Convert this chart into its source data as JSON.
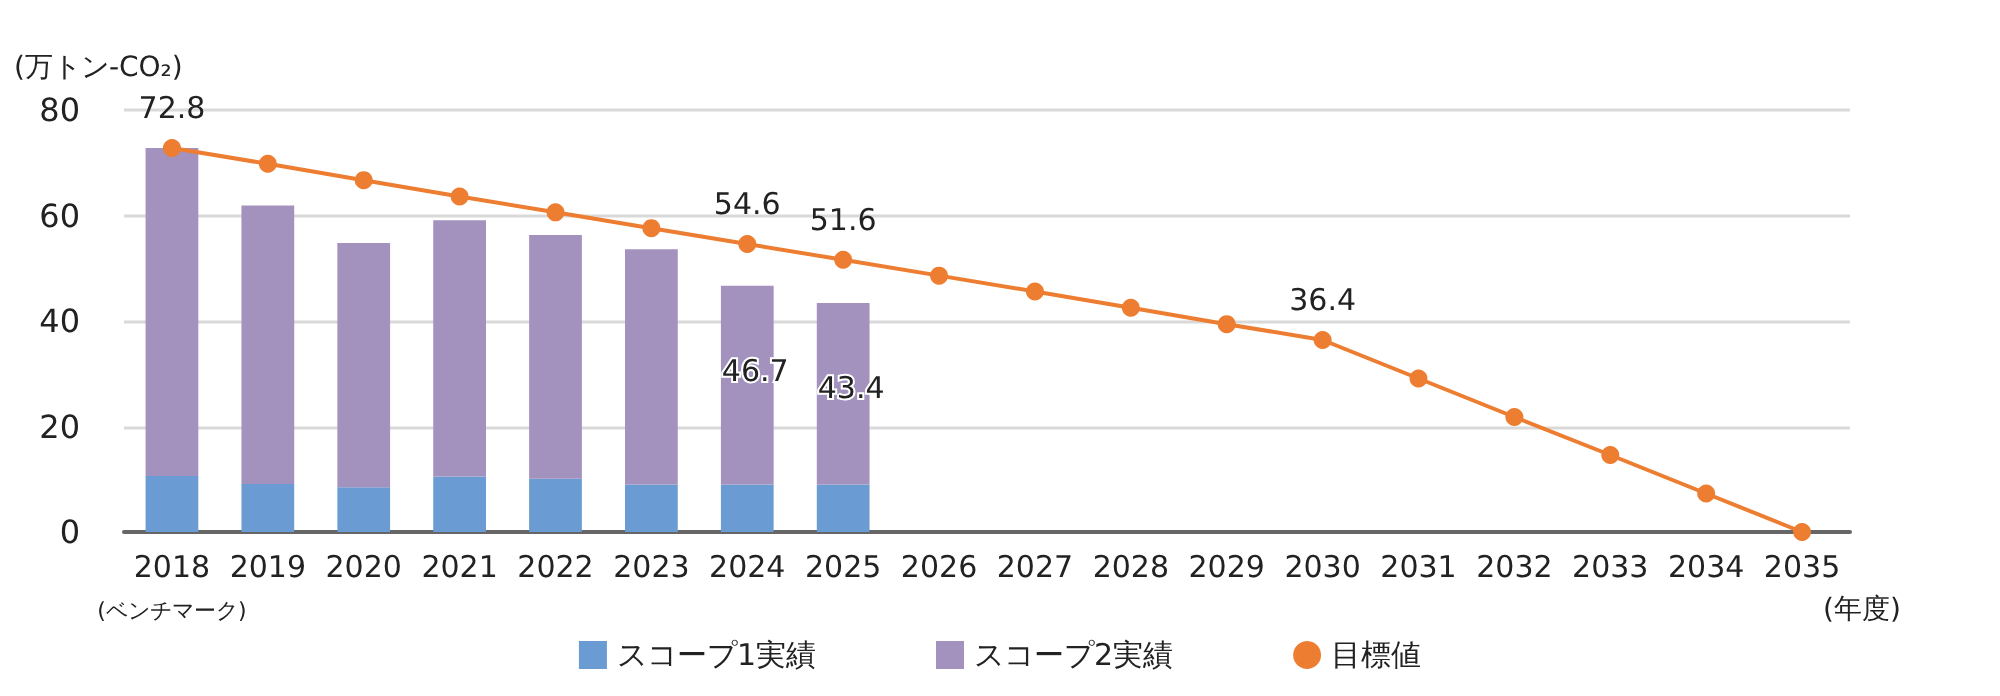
{
  "chart_data": {
    "type": "bar",
    "stacked": true,
    "ylabel": "(万トン-CO₂)",
    "xlabel": "(年度)",
    "categories": [
      "2018",
      "2019",
      "2020",
      "2021",
      "2022",
      "2023",
      "2024",
      "2025",
      "2026",
      "2027",
      "2028",
      "2029",
      "2030",
      "2031",
      "2032",
      "2033",
      "2034",
      "2035"
    ],
    "series": [
      {
        "name": "スコープ1実績",
        "color": "#6a9bd3",
        "values": [
          10.6,
          9.1,
          8.5,
          10.5,
          10.1,
          9.0,
          9.0,
          9.0,
          null,
          null,
          null,
          null,
          null,
          null,
          null,
          null,
          null,
          null
        ]
      },
      {
        "name": "スコープ2実績",
        "color": "#a391be",
        "values": [
          62.2,
          52.8,
          46.3,
          48.6,
          46.2,
          44.6,
          37.7,
          34.4,
          null,
          null,
          null,
          null,
          null,
          null,
          null,
          null,
          null,
          null
        ]
      },
      {
        "name": "目標値",
        "type": "line",
        "color": "#ed7d31",
        "marker": "circle",
        "values": [
          72.8,
          69.8,
          66.7,
          63.6,
          60.6,
          57.6,
          54.6,
          51.6,
          48.6,
          45.6,
          42.5,
          39.4,
          36.4,
          29.1,
          21.8,
          14.6,
          7.3,
          0
        ],
        "value_labels": [
          "72.8",
          null,
          null,
          null,
          null,
          null,
          "54.6",
          "51.6",
          null,
          null,
          null,
          null,
          "36.4",
          null,
          null,
          null,
          null,
          null
        ]
      }
    ],
    "totals": [
      null,
      null,
      null,
      null,
      null,
      null,
      "46.7",
      "43.4",
      null,
      null,
      null,
      null,
      null,
      null,
      null,
      null,
      null,
      null
    ],
    "annotations": [
      "(ベンチマーク)"
    ],
    "ylim": [
      0,
      80
    ],
    "yticks": [
      0,
      20,
      40,
      60,
      80
    ],
    "grid": "y",
    "legend": "bottom"
  }
}
